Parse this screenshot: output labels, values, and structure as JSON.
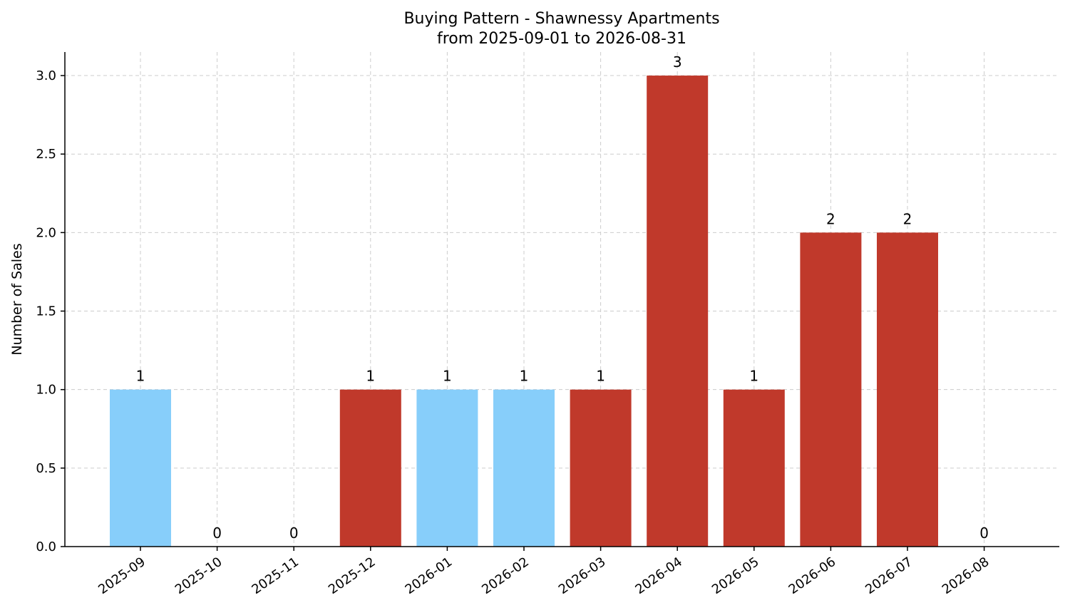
{
  "chart_data": {
    "type": "bar",
    "title": "Buying Pattern - Shawnessy Apartments",
    "subtitle": "from 2025-09-01 to 2026-08-31",
    "xlabel": "",
    "ylabel": "Number of Sales",
    "ylim": [
      0,
      3.15
    ],
    "yticks": [
      "0.0",
      "0.5",
      "1.0",
      "1.5",
      "2.0",
      "2.5",
      "3.0"
    ],
    "categories": [
      "2025-09",
      "2025-10",
      "2025-11",
      "2025-12",
      "2026-01",
      "2026-02",
      "2026-03",
      "2026-04",
      "2026-05",
      "2026-06",
      "2026-07",
      "2026-08"
    ],
    "values": [
      1,
      0,
      0,
      1,
      1,
      1,
      1,
      3,
      1,
      2,
      2,
      0
    ],
    "data_labels": [
      "1",
      "0",
      "0",
      "1",
      "1",
      "1",
      "1",
      "3",
      "1",
      "2",
      "2",
      "0"
    ],
    "bar_colors": [
      "#87cefa",
      "#87cefa",
      "#87cefa",
      "#c0392b",
      "#87cefa",
      "#87cefa",
      "#c0392b",
      "#c0392b",
      "#c0392b",
      "#c0392b",
      "#c0392b",
      "#c0392b"
    ],
    "grid": true
  }
}
